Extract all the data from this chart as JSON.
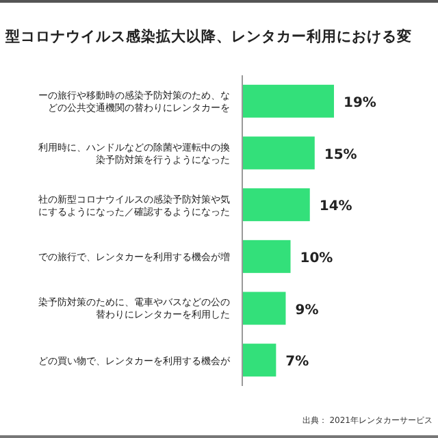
{
  "chart_data": {
    "type": "bar",
    "orientation": "horizontal",
    "title": "型コロナウイルス感染拡大以降、レンタカー利用における変",
    "categories": [
      "ーの旅行や移動時の感染予防対策のため、などの公共交通機関の替わりにレンタカーを",
      "利用時に、ハンドルなどの除菌や運転中の換染予防対策を行うようになった",
      "社の新型コロナウイルスの感染予防対策や気にするようになった／確認するようになった",
      "での旅行で、レンタカーを利用する機会が増",
      "染予防対策のために、電車やバスなどの公の替わりにレンタカーを利用した",
      "どの買い物で、レンタカーを利用する機会が"
    ],
    "values": [
      19,
      15,
      14,
      10,
      9,
      7
    ],
    "value_labels": [
      "19%",
      "15%",
      "14%",
      "10%",
      "9%",
      "7%"
    ],
    "color": "#33e07a",
    "annotations": [
      "出典： 2021年レンタカーサービス"
    ]
  }
}
